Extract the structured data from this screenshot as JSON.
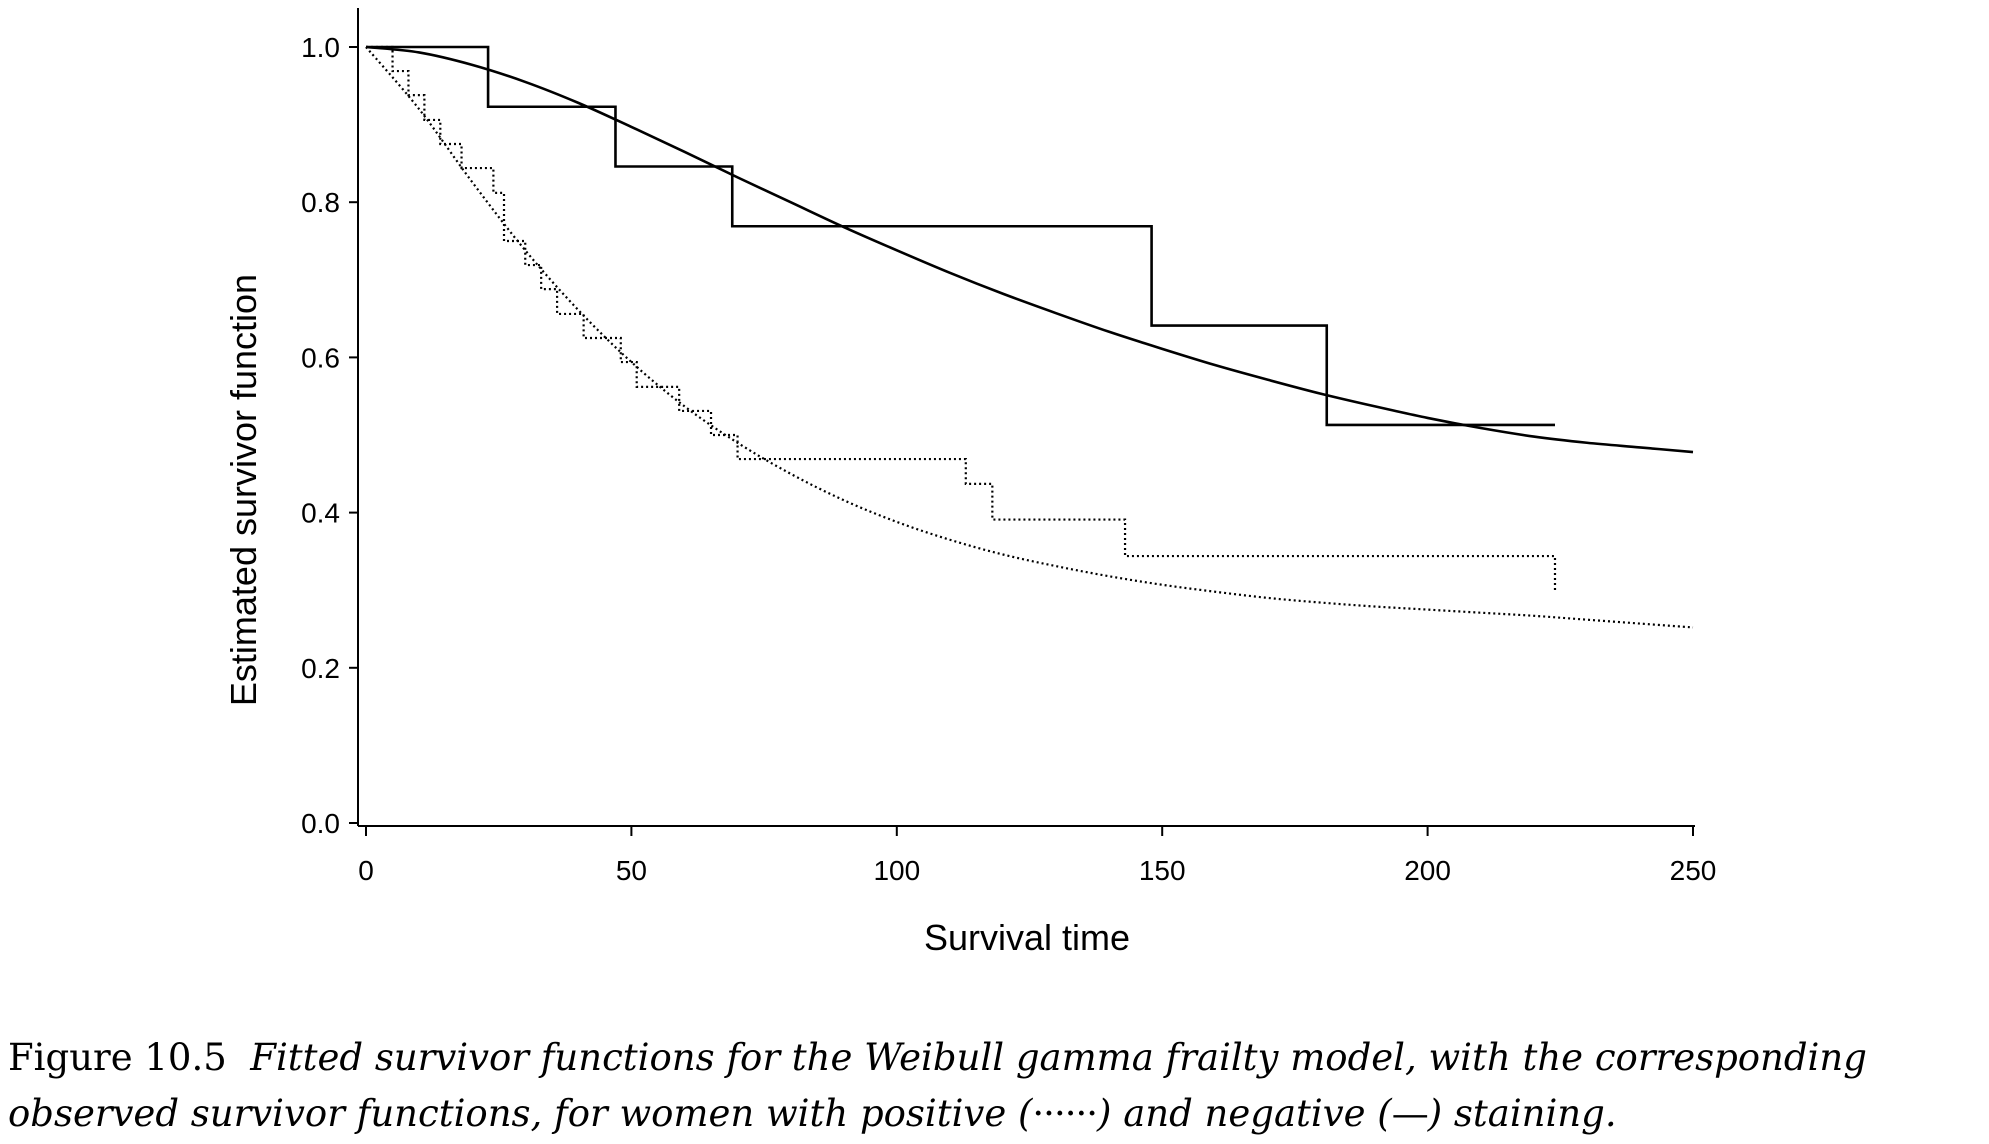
{
  "chart_data": {
    "type": "line",
    "xlabel": "Survival time",
    "ylabel": "Estimated survivor function",
    "xlim": [
      0,
      250
    ],
    "ylim": [
      0,
      1.0
    ],
    "x_ticks": [
      "0",
      "50",
      "100",
      "150",
      "200",
      "250"
    ],
    "y_ticks": [
      "0.0",
      "0.2",
      "0.4",
      "0.6",
      "0.8",
      "1.0"
    ],
    "grid": false,
    "series": [
      {
        "style": "solid",
        "kind": "fitted",
        "x": [
          0,
          10,
          20,
          30,
          40,
          50,
          60,
          70,
          80,
          90,
          100,
          110,
          120,
          130,
          140,
          150,
          160,
          170,
          180,
          190,
          200,
          210,
          220,
          230,
          240,
          250
        ],
        "y": [
          1.0,
          0.993,
          0.977,
          0.955,
          0.928,
          0.897,
          0.865,
          0.832,
          0.8,
          0.768,
          0.738,
          0.709,
          0.682,
          0.657,
          0.633,
          0.611,
          0.59,
          0.571,
          0.553,
          0.537,
          0.522,
          0.509,
          0.498,
          0.49,
          0.484,
          0.478
        ]
      },
      {
        "style": "solid",
        "kind": "observed-step",
        "x": [
          0,
          23,
          47,
          69,
          148,
          181,
          224
        ],
        "y": [
          1.0,
          0.923,
          0.846,
          0.769,
          0.641,
          0.513,
          0.513
        ]
      },
      {
        "style": "dotted",
        "kind": "fitted",
        "x": [
          0,
          10,
          20,
          30,
          40,
          50,
          60,
          70,
          80,
          90,
          100,
          110,
          120,
          130,
          140,
          150,
          160,
          170,
          180,
          190,
          200,
          210,
          220,
          230,
          240,
          250
        ],
        "y": [
          1.0,
          0.92,
          0.826,
          0.738,
          0.661,
          0.594,
          0.537,
          0.49,
          0.45,
          0.416,
          0.388,
          0.365,
          0.346,
          0.331,
          0.318,
          0.307,
          0.298,
          0.29,
          0.284,
          0.279,
          0.275,
          0.271,
          0.267,
          0.262,
          0.257,
          0.252
        ]
      },
      {
        "style": "dotted",
        "kind": "observed-step",
        "x": [
          0,
          5,
          8,
          11,
          14,
          18,
          24,
          26,
          30,
          33,
          36,
          41,
          48,
          51,
          59,
          65,
          70,
          113,
          118,
          143,
          224
        ],
        "y": [
          1.0,
          0.969,
          0.938,
          0.906,
          0.875,
          0.844,
          0.812,
          0.75,
          0.719,
          0.688,
          0.656,
          0.625,
          0.594,
          0.562,
          0.531,
          0.5,
          0.469,
          0.437,
          0.391,
          0.344,
          0.297
        ]
      }
    ]
  },
  "caption": {
    "label": "Figure 10.5",
    "line1": "Fitted survivor functions for the Weibull gamma frailty model, with the corresponding",
    "line2_a": "observed survivor functions, for women with positive (",
    "dotted_symbol": "······",
    "line2_b": ") and negative (",
    "solid_symbol": "—",
    "line2_c": ") staining."
  }
}
